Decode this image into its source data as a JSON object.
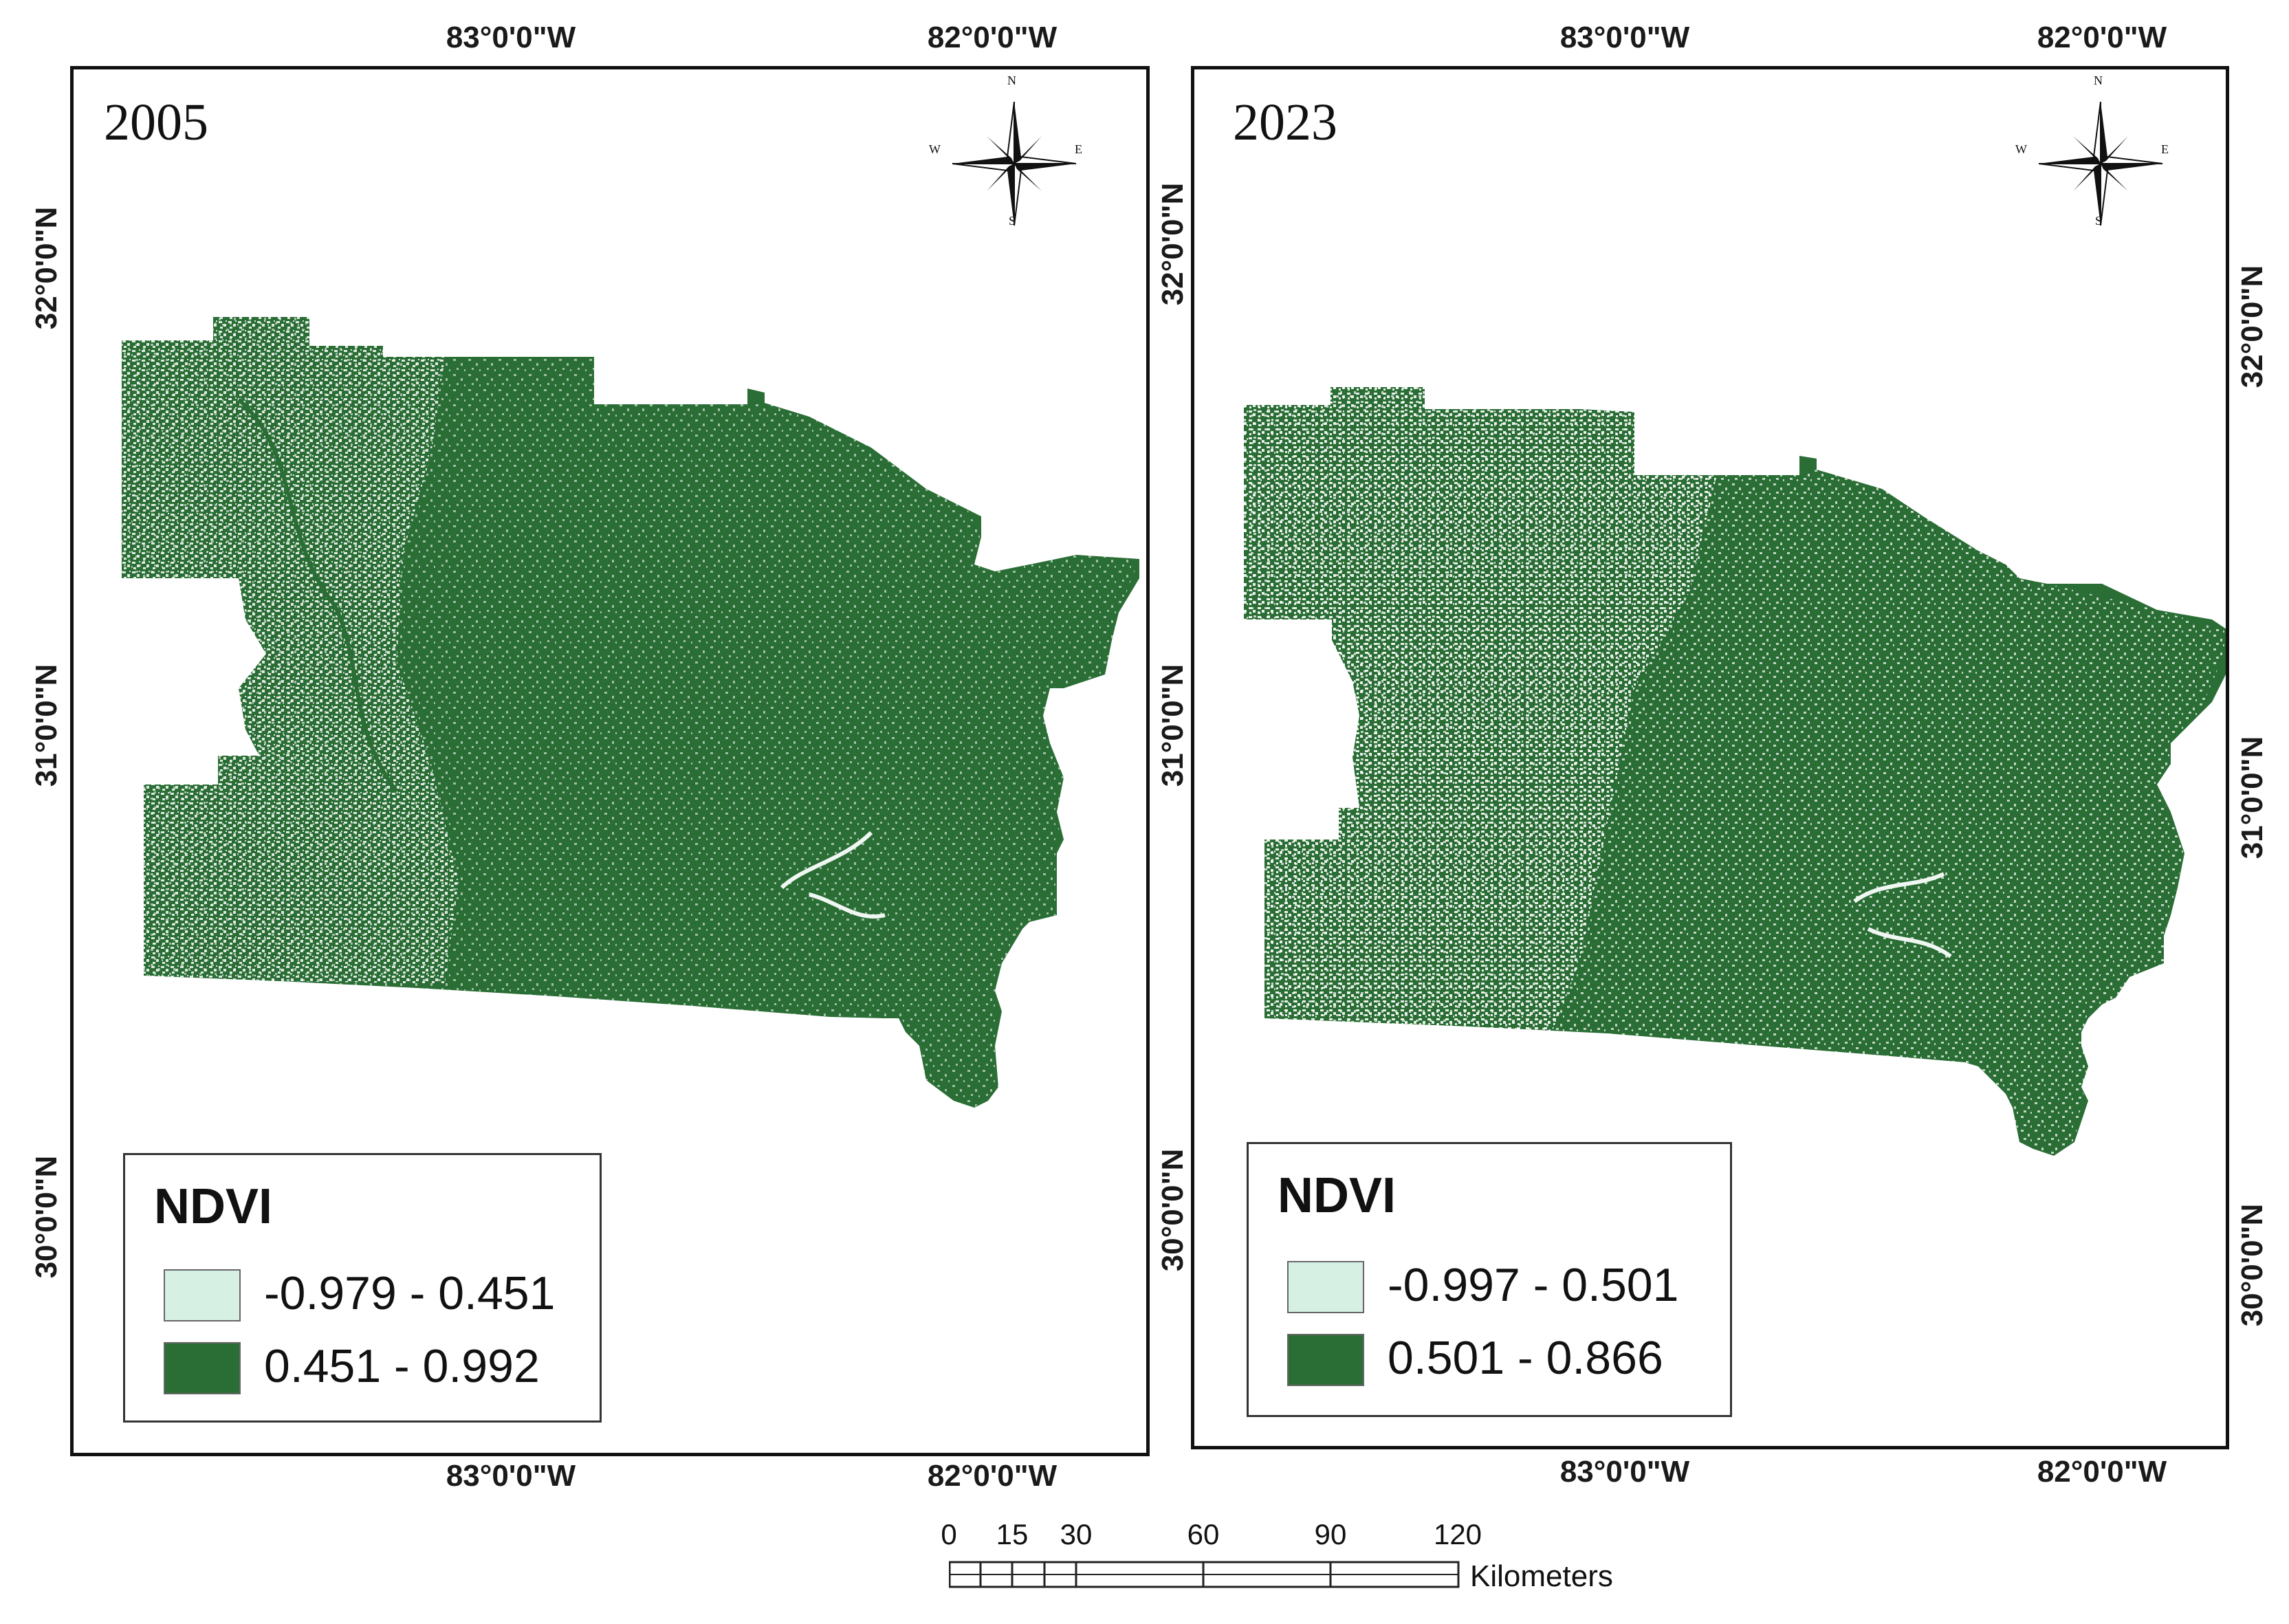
{
  "panels": [
    {
      "year": "2005",
      "legend": {
        "title": "NDVI",
        "classes": [
          {
            "label": "-0.979 - 0.451",
            "color": "#d7f0e4"
          },
          {
            "label": "0.451 - 0.992",
            "color": "#2a6e35"
          }
        ]
      },
      "top_lon_labels": [
        "83°0'0\"W",
        "82°0'0\"W"
      ],
      "bottom_lon_labels": [
        "83°0'0\"W",
        "82°0'0\"W"
      ],
      "left_lat_labels": [
        "32°0'0\"N",
        "31°0'0\"N",
        "30°0'0\"N"
      ]
    },
    {
      "year": "2023",
      "legend": {
        "title": "NDVI",
        "classes": [
          {
            "label": "-0.997 - 0.501",
            "color": "#d7f0e4"
          },
          {
            "label": "0.501 - 0.866",
            "color": "#2a6e35"
          }
        ]
      },
      "top_lon_labels": [
        "83°0'0\"W",
        "82°0'0\"W"
      ],
      "bottom_lon_labels": [
        "83°0'0\"W",
        "82°0'0\"W"
      ],
      "left_lat_labels": [
        "32°0'0\"N",
        "31°0'0\"N",
        "30°0'0\"N"
      ],
      "right_lat_labels": [
        "32°0'0\"N",
        "31°0'0\"N",
        "30°0'0\"N"
      ]
    }
  ],
  "compass": {
    "n": "N",
    "s": "S",
    "e": "E",
    "w": "W"
  },
  "scale_bar": {
    "ticks": [
      "0",
      "15",
      "30",
      "60",
      "90",
      "120"
    ],
    "unit": "Kilometers"
  },
  "colors": {
    "vegetation": "#2a6e35",
    "low_ndvi": "#d7f0e4"
  }
}
